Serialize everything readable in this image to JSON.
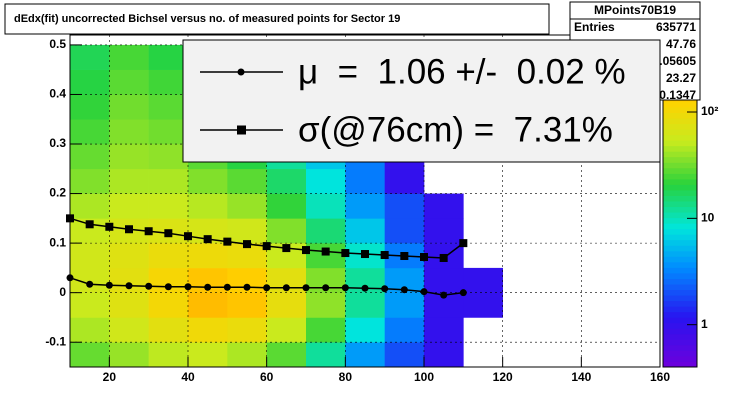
{
  "chart_data": {
    "type": "heatmap",
    "title": "dEdx(fit) uncorrected Bichsel versus no. of measured points for Sector 19",
    "xlim": [
      10,
      160
    ],
    "xticks": [
      20,
      40,
      60,
      80,
      100,
      120,
      140,
      160
    ],
    "ylim": [
      -0.15,
      0.52
    ],
    "yticks": [
      -0.1,
      0,
      0.1,
      0.2,
      0.3,
      0.4,
      0.5
    ],
    "zlim": [
      0.4,
      530
    ],
    "zlog": true,
    "zticks": [
      1,
      10,
      {
        "value": 100,
        "label": "10²"
      }
    ],
    "grid": true,
    "xbins": [
      10,
      20,
      30,
      40,
      50,
      60,
      70,
      80,
      90,
      100,
      110,
      120,
      130,
      140
    ],
    "ybins": [
      -0.15,
      -0.1,
      -0.05,
      0,
      0.05,
      0.1,
      0.15,
      0.2,
      0.25,
      0.3,
      0.35,
      0.4,
      0.45,
      0.5
    ],
    "counts": [
      [
        30,
        40,
        50,
        55,
        45,
        28,
        12,
        4,
        2,
        1,
        0,
        0,
        0
      ],
      [
        45,
        60,
        80,
        100,
        90,
        55,
        25,
        8,
        3,
        1,
        0,
        0,
        0
      ],
      [
        55,
        75,
        105,
        150,
        140,
        85,
        38,
        12,
        4,
        1,
        1,
        0,
        0
      ],
      [
        60,
        80,
        110,
        140,
        130,
        80,
        35,
        12,
        4,
        1,
        1,
        0,
        0
      ],
      [
        60,
        75,
        90,
        95,
        90,
        55,
        25,
        9,
        3,
        1,
        0,
        0,
        0
      ],
      [
        55,
        65,
        70,
        65,
        60,
        35,
        15,
        6,
        2,
        1,
        0,
        0,
        0
      ],
      [
        45,
        55,
        55,
        48,
        40,
        22,
        10,
        4,
        2,
        1,
        0,
        0,
        0
      ],
      [
        35,
        45,
        45,
        35,
        28,
        16,
        8,
        3,
        1,
        0,
        0,
        0,
        0
      ],
      [
        30,
        40,
        38,
        28,
        20,
        12,
        6,
        3,
        1,
        0,
        0,
        0,
        0
      ],
      [
        25,
        35,
        32,
        22,
        15,
        9,
        5,
        2,
        1,
        0,
        0,
        0,
        0
      ],
      [
        22,
        32,
        28,
        18,
        12,
        7,
        4,
        2,
        1,
        0,
        0,
        0,
        0
      ],
      [
        20,
        28,
        24,
        15,
        10,
        6,
        3,
        2,
        1,
        0,
        0,
        0,
        0
      ],
      [
        18,
        25,
        20,
        12,
        8,
        5,
        3,
        2,
        1,
        0,
        0,
        0,
        0
      ]
    ],
    "series": [
      {
        "name": "μ  =  1.06 +/-  0.02 %",
        "marker": "circle",
        "color": "#000000",
        "x": [
          10,
          15,
          20,
          25,
          30,
          35,
          40,
          45,
          50,
          55,
          60,
          65,
          70,
          75,
          80,
          85,
          90,
          95,
          100,
          105,
          110
        ],
        "values": [
          0.03,
          0.017,
          0.015,
          0.014,
          0.013,
          0.012,
          0.012,
          0.011,
          0.011,
          0.011,
          0.01,
          0.01,
          0.01,
          0.01,
          0.01,
          0.009,
          0.008,
          0.006,
          0.002,
          -0.005,
          0.0
        ]
      },
      {
        "name": "σ(@76cm) =  7.31%",
        "marker": "square",
        "color": "#000000",
        "x": [
          10,
          15,
          20,
          25,
          30,
          35,
          40,
          45,
          50,
          55,
          60,
          65,
          70,
          75,
          80,
          85,
          90,
          95,
          100,
          105,
          110
        ],
        "values": [
          0.15,
          0.138,
          0.133,
          0.128,
          0.124,
          0.12,
          0.114,
          0.108,
          0.103,
          0.098,
          0.094,
          0.09,
          0.086,
          0.083,
          0.08,
          0.078,
          0.076,
          0.074,
          0.072,
          0.07,
          0.1
        ]
      }
    ],
    "stats": {
      "title": "MPoints70B19",
      "rows": [
        {
          "label": "Entries",
          "value": 635771
        },
        {
          "value": 47.76
        },
        {
          "value": 0.05605
        },
        {
          "value": 23.27
        },
        {
          "value": 0.1347
        }
      ]
    }
  }
}
